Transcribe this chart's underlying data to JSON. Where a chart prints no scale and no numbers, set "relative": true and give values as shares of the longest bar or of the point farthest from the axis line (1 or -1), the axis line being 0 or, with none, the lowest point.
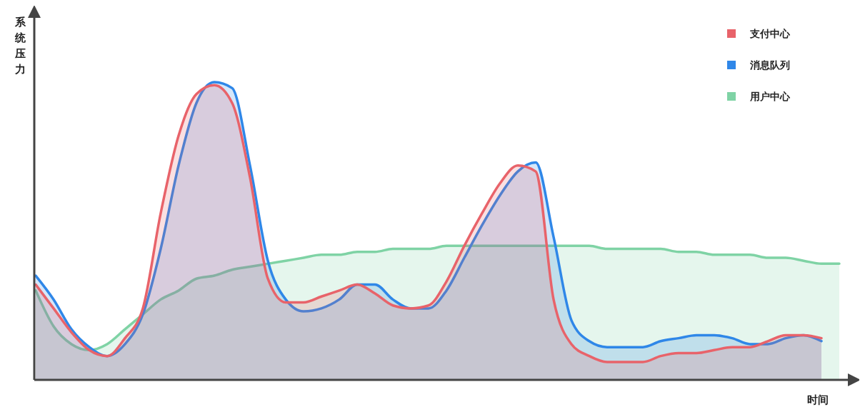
{
  "chart_data": {
    "type": "area",
    "relative": true,
    "xlabel": "时间",
    "ylabel": "系统压力",
    "legend": "top right",
    "categories": [
      null,
      null,
      null,
      null,
      null,
      null,
      null,
      null,
      null,
      null,
      null,
      null,
      null,
      null,
      null,
      null,
      null,
      null,
      null,
      null,
      null,
      null,
      null,
      null,
      null,
      null,
      null,
      null,
      null,
      null,
      null,
      null,
      null,
      null,
      null,
      null,
      null,
      null,
      null,
      null,
      null,
      null,
      null,
      null,
      null,
      null
    ],
    "series": [
      {
        "name": "支付中心",
        "color": "#e8636a",
        "values": [
          0.32,
          0.24,
          0.16,
          0.1,
          0.08,
          0.14,
          0.24,
          0.56,
          0.82,
          0.96,
          0.99,
          0.93,
          0.68,
          0.34,
          0.26,
          0.26,
          0.28,
          0.3,
          0.32,
          0.29,
          0.25,
          0.24,
          0.25,
          0.33,
          0.45,
          0.56,
          0.66,
          0.72,
          0.7,
          0.27,
          0.12,
          0.08,
          0.06,
          0.06,
          0.06,
          0.08,
          0.09,
          0.09,
          0.1,
          0.11,
          0.11,
          0.13,
          0.15,
          0.15,
          0.14,
          null
        ]
      },
      {
        "name": "消息队列",
        "color": "#2f87e8",
        "values": [
          0.35,
          0.27,
          0.17,
          0.11,
          0.08,
          0.12,
          0.22,
          0.44,
          0.72,
          0.93,
          1,
          0.98,
          0.72,
          0.4,
          0.27,
          0.23,
          0.24,
          0.27,
          0.32,
          0.32,
          0.27,
          0.24,
          0.24,
          0.3,
          0.41,
          0.52,
          0.62,
          0.7,
          0.73,
          0.48,
          0.2,
          0.13,
          0.11,
          0.11,
          0.11,
          0.13,
          0.14,
          0.15,
          0.15,
          0.14,
          0.12,
          0.12,
          0.14,
          0.15,
          0.13,
          null
        ]
      },
      {
        "name": "用户中心",
        "color": "#7fd3a5",
        "values": [
          0.3,
          0.18,
          0.12,
          0.1,
          0.12,
          0.17,
          0.22,
          0.27,
          0.3,
          0.34,
          0.35,
          0.37,
          0.38,
          0.39,
          0.4,
          0.41,
          0.42,
          0.42,
          0.43,
          0.43,
          0.44,
          0.44,
          0.44,
          0.45,
          0.45,
          0.45,
          0.45,
          0.45,
          0.45,
          0.45,
          0.45,
          0.45,
          0.44,
          0.44,
          0.44,
          0.44,
          0.43,
          0.43,
          0.42,
          0.42,
          0.42,
          0.41,
          0.41,
          0.4,
          0.39,
          0.39
        ]
      }
    ]
  }
}
